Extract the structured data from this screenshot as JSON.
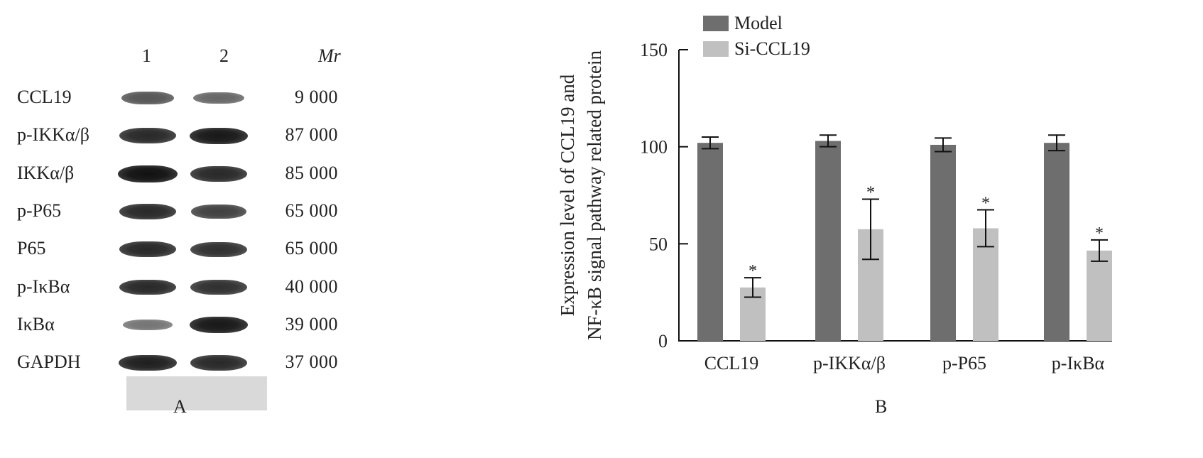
{
  "panel_a": {
    "label": "A",
    "lanes": [
      "1",
      "2"
    ],
    "mr_header": "Mr",
    "rows": [
      {
        "protein": "CCL19",
        "mr": "9 000",
        "lane1": 0.55,
        "lane2": 0.45
      },
      {
        "protein": "p-IKKα/β",
        "mr": "87 000",
        "lane1": 0.85,
        "lane2": 0.95
      },
      {
        "protein": "IKKα/β",
        "mr": "85 000",
        "lane1": 1.0,
        "lane2": 0.85
      },
      {
        "protein": "p-P65",
        "mr": "65 000",
        "lane1": 0.85,
        "lane2": 0.7
      },
      {
        "protein": "P65",
        "mr": "65 000",
        "lane1": 0.85,
        "lane2": 0.8
      },
      {
        "protein": "p-IκBα",
        "mr": "40 000",
        "lane1": 0.85,
        "lane2": 0.8
      },
      {
        "protein": "IκBα",
        "mr": "39 000",
        "lane1": 0.35,
        "lane2": 0.95
      },
      {
        "protein": "GAPDH",
        "mr": "37 000",
        "lane1": 0.9,
        "lane2": 0.85
      }
    ]
  },
  "panel_b": {
    "label": "B"
  },
  "chart_data": {
    "type": "bar",
    "title": "",
    "ylabel_line1": "Expression level of CCL19 and",
    "ylabel_line2": "NF-κB signal pathway related protein",
    "xlabel": "",
    "categories": [
      "CCL19",
      "p-IKKα/β",
      "p-P65",
      "p-IκBα"
    ],
    "ylim": [
      0,
      150
    ],
    "yticks": [
      0,
      50,
      100,
      150
    ],
    "legend_position": "top-left",
    "series": [
      {
        "name": "Model",
        "color": "#6e6e6e",
        "values": [
          102,
          103,
          101,
          102
        ],
        "errors": [
          3,
          3,
          3.5,
          4
        ],
        "marks": [
          "",
          "",
          "",
          ""
        ]
      },
      {
        "name": "Si-CCL19",
        "color": "#c0c0c0",
        "values": [
          27.5,
          57.5,
          58,
          46.5
        ],
        "errors": [
          5,
          15.5,
          9.5,
          5.5
        ],
        "marks": [
          "*",
          "*",
          "*",
          "*"
        ]
      }
    ]
  }
}
